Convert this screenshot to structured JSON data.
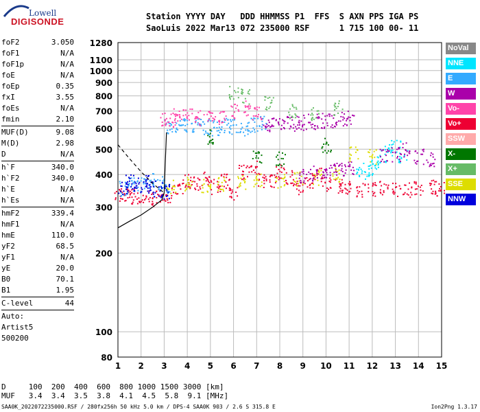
{
  "logo": {
    "top": "Lowell",
    "bottom": "DIGISONDE"
  },
  "header": {
    "line1": "Station YYYY DAY   DDD HHMMSS P1  FFS  S AXN PPS IGA PS",
    "line2": "SaoLuis 2022 Mar13 072 235000 RSF      1 715 100 00- 11"
  },
  "params": [
    {
      "label": "foF2",
      "value": "3.050"
    },
    {
      "label": "foF1",
      "value": "N/A"
    },
    {
      "label": "foF1p",
      "value": "N/A"
    },
    {
      "label": "foE",
      "value": "N/A"
    },
    {
      "label": "foEp",
      "value": "0.35"
    },
    {
      "label": "fxI",
      "value": "3.55"
    },
    {
      "label": "foEs",
      "value": "N/A"
    },
    {
      "label": "fmin",
      "value": "2.10"
    },
    {
      "sep": true
    },
    {
      "label": "MUF(D)",
      "value": "9.08"
    },
    {
      "label": "M(D)",
      "value": "2.98"
    },
    {
      "label": "D",
      "value": "N/A"
    },
    {
      "sep": true
    },
    {
      "label": "h`F",
      "value": "340.0"
    },
    {
      "label": "h`F2",
      "value": "340.0"
    },
    {
      "label": "h`E",
      "value": "N/A"
    },
    {
      "label": "h`Es",
      "value": "N/A"
    },
    {
      "sep": true
    },
    {
      "label": "hmF2",
      "value": "339.4"
    },
    {
      "label": "hmF1",
      "value": "N/A"
    },
    {
      "label": "hmE",
      "value": "110.0"
    },
    {
      "label": "yF2",
      "value": "68.5"
    },
    {
      "label": "yF1",
      "value": "N/A"
    },
    {
      "label": "yE",
      "value": "20.0"
    },
    {
      "label": "B0",
      "value": "70.1"
    },
    {
      "label": "B1",
      "value": "1.95"
    },
    {
      "sep": true
    },
    {
      "label": "C-level",
      "value": "44"
    },
    {
      "sep": true
    },
    {
      "text": "Auto:"
    },
    {
      "text": "Artist5"
    },
    {
      "text": "500200"
    }
  ],
  "legend": [
    {
      "label": "NoVal",
      "color": "#888888"
    },
    {
      "label": "NNE",
      "color": "#00e5ff"
    },
    {
      "label": "E",
      "color": "#33aaff"
    },
    {
      "label": "W",
      "color": "#aa00aa"
    },
    {
      "label": "Vo-",
      "color": "#ff44aa"
    },
    {
      "label": "Vo+",
      "color": "#ee0033"
    },
    {
      "label": "SSW",
      "color": "#ffaaaa"
    },
    {
      "label": "X-",
      "color": "#007700"
    },
    {
      "label": "X+",
      "color": "#66bb66"
    },
    {
      "label": "SSE",
      "color": "#dddd00"
    },
    {
      "label": "NNW",
      "color": "#0000dd"
    }
  ],
  "muf_table": {
    "line1": "D     100  200  400  600  800 1000 1500 3000 [km]",
    "line2": "MUF   3.4  3.4  3.5  3.8  4.1  4.5  5.8  9.1 [MHz]"
  },
  "footer": "SAA0K_2022072235000.RSF / 280fx256h 50 kHz 5.0 km / DPS-4 SAA0K 903 / 2.6 S 315.8 E",
  "version": "Ion2Png 1.3.17",
  "chart_data": {
    "type": "scatter",
    "title": "",
    "xlabel": "",
    "ylabel": "",
    "xlim": [
      1,
      15
    ],
    "ylim": [
      80,
      1280
    ],
    "y_scale": "log",
    "x_ticks": [
      1,
      2,
      3,
      4,
      5,
      6,
      7,
      8,
      9,
      10,
      11,
      12,
      13,
      14,
      15
    ],
    "y_ticks": [
      80,
      100,
      200,
      300,
      400,
      500,
      600,
      700,
      800,
      900,
      1000,
      1100,
      1280
    ],
    "grid": true,
    "series": [
      {
        "color": "#ee0033",
        "x": [
          1.0,
          1.3,
          1.6,
          2.0,
          2.4,
          2.8,
          3.2,
          3.6,
          4.0,
          4.4,
          4.8,
          5.2,
          5.6,
          6.0,
          6.4,
          6.8,
          7.2,
          7.6,
          8.0,
          8.4,
          8.8,
          9.2,
          9.6,
          10.0,
          10.5,
          11.0,
          11.5,
          12.0,
          12.5,
          13.0,
          13.5,
          14.0,
          14.5,
          14.9
        ],
        "y": [
          340,
          335,
          330,
          330,
          325,
          330,
          335,
          360,
          380,
          370,
          390,
          360,
          380,
          340,
          410,
          430,
          380,
          375,
          410,
          390,
          360,
          380,
          400,
          370,
          360,
          355,
          350,
          350,
          355,
          350,
          350,
          355,
          360,
          355
        ]
      },
      {
        "color": "#dddd00",
        "x": [
          3.3,
          4.0,
          4.8,
          5.5,
          6.3,
          7.0,
          8.0,
          8.8,
          9.6,
          10.4,
          11.2,
          12.0
        ],
        "y": [
          360,
          370,
          360,
          370,
          375,
          380,
          380,
          385,
          390,
          400,
          480,
          470
        ]
      },
      {
        "color": "#33aaff",
        "x": [
          1.2,
          1.6,
          2.0,
          2.4,
          2.8,
          3.0,
          3.2,
          3.6,
          4.0,
          4.4,
          4.8,
          5.2,
          5.6,
          6.0,
          6.4,
          6.8,
          7.2
        ],
        "y": [
          355,
          370,
          365,
          380,
          370,
          360,
          610,
          610,
          615,
          615,
          610,
          605,
          620,
          610,
          600,
          620,
          630
        ]
      },
      {
        "color": "#00e5ff",
        "x": [
          11.5,
          11.8,
          12.1,
          12.4,
          12.7,
          13.0,
          13.3
        ],
        "y": [
          410,
          420,
          440,
          470,
          490,
          520,
          470
        ]
      },
      {
        "color": "#aa00aa",
        "x": [
          7.4,
          7.8,
          8.2,
          8.6,
          9.0,
          9.4,
          9.8,
          10.2,
          10.6,
          11.0,
          12.5,
          13.0,
          13.4,
          14.0,
          14.5
        ],
        "y": [
          625,
          625,
          630,
          630,
          635,
          640,
          645,
          650,
          655,
          660,
          470,
          480,
          500,
          470,
          460
        ]
      },
      {
        "color": "#aa00aa",
        "x": [
          9.0,
          9.4,
          9.8,
          10.2,
          10.6,
          11.0
        ],
        "y": [
          400,
          405,
          410,
          415,
          420,
          425
        ]
      },
      {
        "color": "#0000dd",
        "x": [
          1.2,
          1.5,
          1.8,
          2.1,
          2.4,
          2.7,
          3.0
        ],
        "y": [
          360,
          380,
          365,
          375,
          360,
          350,
          345
        ]
      },
      {
        "color": "#ff44aa",
        "x": [
          3.0,
          3.3,
          3.6,
          4.0,
          4.5,
          5.0,
          5.5,
          6.0,
          6.5,
          7.0
        ],
        "y": [
          660,
          650,
          680,
          670,
          660,
          690,
          660,
          700,
          720,
          690
        ]
      },
      {
        "color": "#66bb66",
        "x": [
          6.0,
          6.5,
          7.5,
          8.5,
          9.5,
          10.5
        ],
        "y": [
          830,
          800,
          760,
          700,
          690,
          720
        ]
      },
      {
        "color": "#007700",
        "x": [
          5.0,
          7.0,
          8.0,
          10.0
        ],
        "y": [
          560,
          470,
          460,
          520
        ]
      }
    ],
    "trace_lines": [
      {
        "style": "solid",
        "x": [
          1.0,
          1.5,
          2.0,
          2.5,
          2.9,
          3.0
        ],
        "y": [
          250,
          265,
          280,
          300,
          320,
          340
        ]
      },
      {
        "style": "dashed",
        "x": [
          1.0,
          1.5,
          2.0,
          2.5,
          3.0
        ],
        "y": [
          520,
          460,
          410,
          370,
          340
        ]
      },
      {
        "style": "solid",
        "x": [
          3.0,
          3.05,
          3.1
        ],
        "y": [
          340,
          450,
          580
        ]
      }
    ]
  }
}
